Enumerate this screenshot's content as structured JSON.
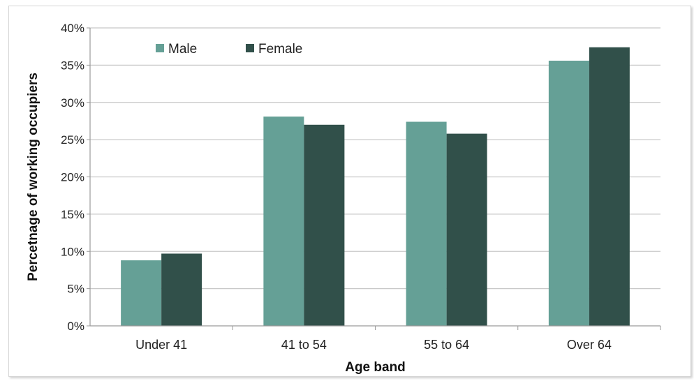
{
  "chart_data": {
    "type": "bar",
    "title": "",
    "xlabel": "Age band",
    "ylabel": "Percetnage of working occupiers",
    "categories": [
      "Under 41",
      "41 to 54",
      "55 to 64",
      "Over 64"
    ],
    "series": [
      {
        "name": "Male",
        "values": [
          8.8,
          28.1,
          27.4,
          35.6
        ],
        "color": "#65a096"
      },
      {
        "name": "Female",
        "values": [
          9.7,
          27.0,
          25.8,
          37.4
        ],
        "color": "#31504a"
      }
    ],
    "ylim": [
      0,
      40
    ],
    "yticks": [
      0,
      5,
      10,
      15,
      20,
      25,
      30,
      35,
      40
    ],
    "ytick_labels": [
      "0%",
      "5%",
      "10%",
      "15%",
      "20%",
      "25%",
      "30%",
      "35%",
      "40%"
    ],
    "grid": true,
    "legend": "top-left",
    "gridline_color": "#c8c8c8",
    "axis_color": "#9a9a9a"
  }
}
